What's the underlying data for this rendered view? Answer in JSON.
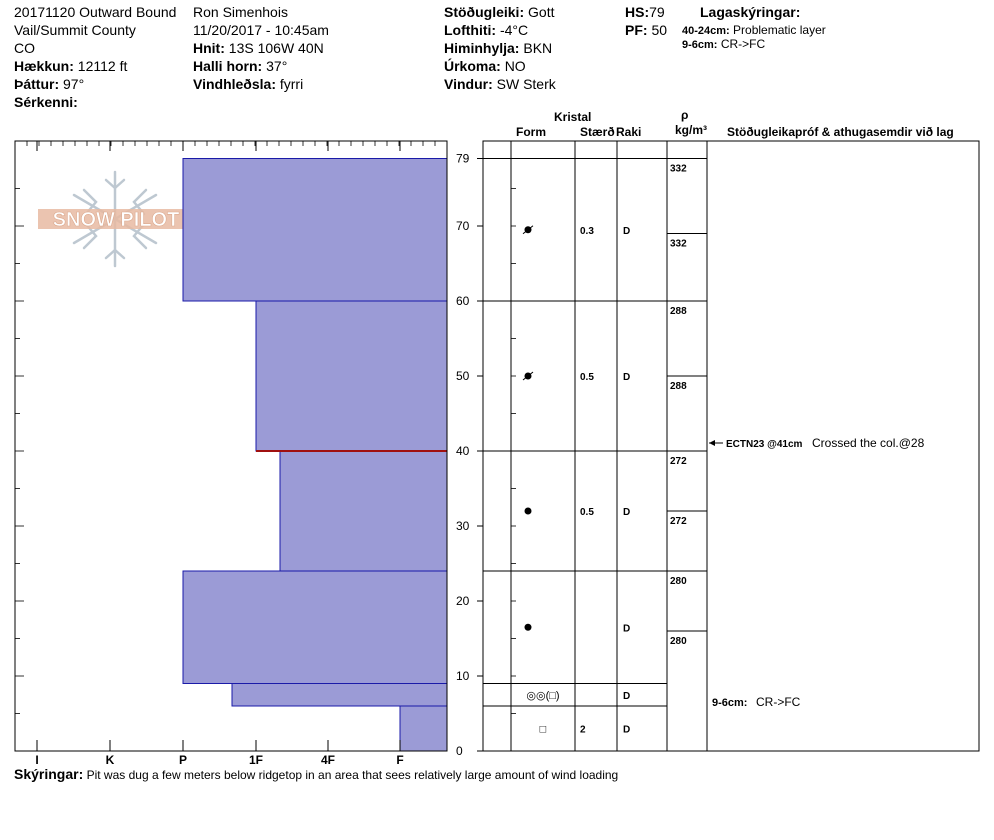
{
  "header": {
    "col1": {
      "line1": "20171120 Outward Bound",
      "line2": "Vail/Summit County",
      "line3": "CO",
      "elevation_label": "Hækkun:",
      "elevation_value": "12112 ft",
      "aspect_label": "Þáttur:",
      "aspect_value": "97°",
      "features_label": "Sérkenni:"
    },
    "col2": {
      "observer": "Ron Simenhois",
      "datetime": "11/20/2017 - 10:45am",
      "coords_label": "Hnit:",
      "coords_value": "13S 106W 40N",
      "slope_label": "Halli horn:",
      "slope_value": "37°",
      "wind_loading_label": "Vindhleðsla:",
      "wind_loading_value": "fyrri"
    },
    "col3": {
      "stability_label": "Stöðugleiki:",
      "stability_value": "Gott",
      "air_temp_label": "Lofthiti:",
      "air_temp_value": "-4°C",
      "sky_label": "Himinhylja:",
      "sky_value": "BKN",
      "precip_label": "Úrkoma:",
      "precip_value": "NO",
      "wind_label": "Vindur:",
      "wind_value": "SW Sterk"
    },
    "col4": {
      "hs_label": "HS:",
      "hs_value": "79",
      "pf_label": "PF:",
      "pf_value": "50"
    },
    "layer_notes": {
      "title": "Lagaskýringar:",
      "items": [
        {
          "range": "40-24cm:",
          "text": "Problematic layer"
        },
        {
          "range": "9-6cm:",
          "text": "CR->FC"
        }
      ]
    }
  },
  "table_headers": {
    "crystal": "Kristal",
    "form": "Form",
    "size": "Stærð",
    "moisture": "Raki",
    "rho": "ρ",
    "density_unit": "kg/m³",
    "tests": "Stöðugleikapróf & athugasemdir við lag"
  },
  "logo_text": "SNOW PILOT",
  "comments": {
    "label": "Skýringar:",
    "text": "Pit was dug a few meters below ridgetop in an area that sees relatively large amount of wind loading"
  },
  "chart_data": {
    "type": "bar",
    "title": "",
    "xlabel": "",
    "ylabel": "",
    "depth_ticks": [
      0,
      10,
      20,
      30,
      40,
      50,
      60,
      70,
      79
    ],
    "ylim": [
      0,
      79
    ],
    "hardness_ticks": [
      "I",
      "K",
      "P",
      "1F",
      "4F",
      "F"
    ],
    "layers": [
      {
        "top": 79,
        "bottom": 60,
        "hardness": "P"
      },
      {
        "top": 60,
        "bottom": 40,
        "hardness": "1F"
      },
      {
        "top": 40,
        "bottom": 24,
        "hardness": "1F-"
      },
      {
        "top": 24,
        "bottom": 9,
        "hardness": "P"
      },
      {
        "top": 9,
        "bottom": 6,
        "hardness": "P-"
      },
      {
        "top": 6,
        "bottom": 0,
        "hardness": "F"
      }
    ],
    "critical_interface_depth": 40,
    "crystal_rows": [
      {
        "top": 79,
        "bottom": 60,
        "form": "decomposing",
        "size": "0.3",
        "moisture": "D"
      },
      {
        "top": 60,
        "bottom": 40,
        "form": "decomposing",
        "size": "0.5",
        "moisture": "D"
      },
      {
        "top": 40,
        "bottom": 24,
        "form": "rounded",
        "size": "0.5",
        "moisture": "D"
      },
      {
        "top": 24,
        "bottom": 9,
        "form": "rounded",
        "size": "",
        "moisture": "D"
      },
      {
        "top": 9,
        "bottom": 6,
        "form": "crust",
        "form_text": "◎◎(□)",
        "size": "",
        "moisture": "D"
      },
      {
        "top": 6,
        "bottom": 0,
        "form": "faceted",
        "form_text": "□",
        "size": "2",
        "moisture": "D"
      }
    ],
    "densities": [
      {
        "depth": 70,
        "value": "332"
      },
      {
        "depth": 65,
        "value": "332"
      },
      {
        "depth": 50,
        "value": "288"
      },
      {
        "depth": 45,
        "value": "288"
      },
      {
        "depth": 30,
        "value": "272"
      },
      {
        "depth": 26,
        "value": "272"
      },
      {
        "depth": 18,
        "value": "280"
      },
      {
        "depth": 14,
        "value": "280"
      }
    ],
    "stability_tests": [
      {
        "depth": 41,
        "code": "ECTN23 @41cm",
        "comment": "Crossed the col.@28"
      }
    ],
    "layer_comments": [
      {
        "top": 9,
        "bottom": 6,
        "text": "9-6cm:",
        "comment": "CR->FC"
      }
    ]
  }
}
